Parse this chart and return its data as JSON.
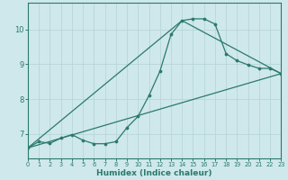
{
  "xlabel": "Humidex (Indice chaleur)",
  "background_color": "#cfe8eb",
  "grid_color": "#b8d5d8",
  "line_color": "#2a7a6a",
  "spine_color": "#2a7a6a",
  "x_min": 0,
  "x_max": 23,
  "y_min": 6.3,
  "y_max": 10.75,
  "yticks": [
    7,
    8,
    9,
    10
  ],
  "xticks": [
    0,
    1,
    2,
    3,
    4,
    5,
    6,
    7,
    8,
    9,
    10,
    11,
    12,
    13,
    14,
    15,
    16,
    17,
    18,
    19,
    20,
    21,
    22,
    23
  ],
  "series_main": {
    "x": [
      0,
      1,
      2,
      3,
      4,
      5,
      6,
      7,
      8,
      9,
      10,
      11,
      12,
      13,
      14,
      15,
      16,
      17,
      18,
      19,
      20,
      21,
      22,
      23
    ],
    "y": [
      6.6,
      6.78,
      6.73,
      6.88,
      6.98,
      6.82,
      6.72,
      6.72,
      6.78,
      7.18,
      7.5,
      8.1,
      8.8,
      9.85,
      10.25,
      10.3,
      10.3,
      10.15,
      9.3,
      9.1,
      8.98,
      8.88,
      8.88,
      8.73
    ]
  },
  "series_line1": {
    "x": [
      0,
      23
    ],
    "y": [
      6.6,
      8.73
    ]
  },
  "series_line2": {
    "x": [
      0,
      14,
      23
    ],
    "y": [
      6.6,
      10.25,
      8.73
    ]
  }
}
